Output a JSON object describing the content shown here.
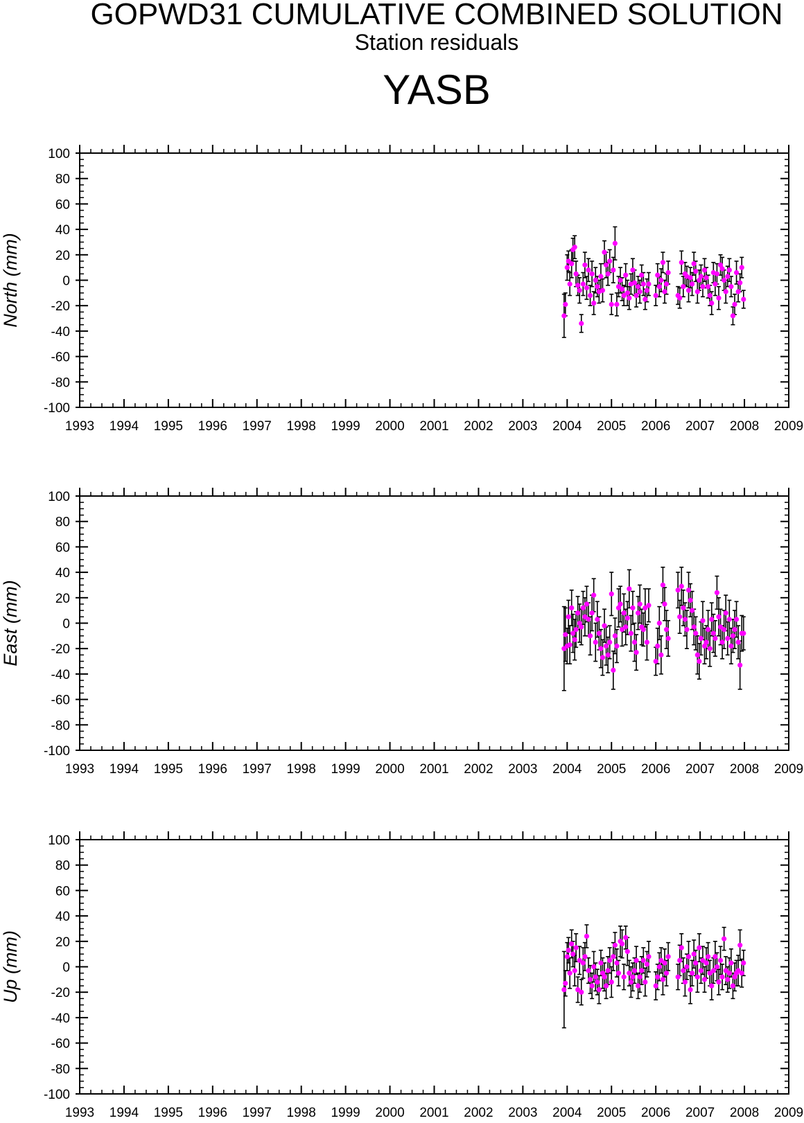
{
  "header": {
    "title": "GOPWD31 CUMULATIVE COMBINED SOLUTION",
    "subtitle": "Station residuals",
    "station": "YASB"
  },
  "colors": {
    "point": "#ff00ff",
    "errorbar": "#000000",
    "axis": "#000000"
  },
  "chart_data": [
    {
      "type": "scatter",
      "ylabel": "North (mm)",
      "xlim": [
        1993,
        2009
      ],
      "ylim": [
        -100,
        100
      ],
      "xticks": [
        "1993",
        "1994",
        "1995",
        "1996",
        "1997",
        "1998",
        "1999",
        "2000",
        "2001",
        "2002",
        "2003",
        "2004",
        "2005",
        "2006",
        "2007",
        "2008",
        "2009"
      ],
      "yticks": [
        "100",
        "80",
        "60",
        "40",
        "20",
        "0",
        "-20",
        "-40",
        "-60",
        "-80",
        "-100"
      ],
      "grid": false,
      "series": [
        {
          "x": [
            2003.93,
            2003.96,
            2004.0,
            2004.03,
            2004.06,
            2004.1,
            2004.13,
            2004.17,
            2004.2,
            2004.24,
            2004.28,
            2004.32,
            2004.36,
            2004.4,
            2004.44,
            2004.48,
            2004.52,
            2004.56,
            2004.6,
            2004.64,
            2004.68,
            2004.72,
            2004.76,
            2004.8,
            2004.84,
            2004.88,
            2004.92,
            2004.96,
            2005.0,
            2005.04,
            2005.08,
            2005.12,
            2005.16,
            2005.2,
            2005.24,
            2005.28,
            2005.32,
            2005.36,
            2005.4,
            2005.44,
            2005.48,
            2005.52,
            2005.56,
            2005.6,
            2005.64,
            2005.68,
            2005.72,
            2005.76,
            2005.8,
            2005.84,
            2006.0,
            2006.04,
            2006.08,
            2006.12,
            2006.16,
            2006.2,
            2006.24,
            2006.28,
            2006.5,
            2006.54,
            2006.58,
            2006.62,
            2006.66,
            2006.7,
            2006.74,
            2006.78,
            2006.82,
            2006.86,
            2006.9,
            2006.94,
            2006.98,
            2007.02,
            2007.06,
            2007.1,
            2007.14,
            2007.18,
            2007.22,
            2007.26,
            2007.3,
            2007.34,
            2007.38,
            2007.42,
            2007.46,
            2007.5,
            2007.54,
            2007.58,
            2007.62,
            2007.66,
            2007.7,
            2007.74,
            2007.78,
            2007.82,
            2007.86,
            2007.9,
            2007.94,
            2007.98
          ],
          "y": [
            -28,
            -19,
            10,
            15,
            -3,
            13,
            24,
            26,
            5,
            -4,
            -8,
            -34,
            -3,
            12,
            -6,
            8,
            -12,
            5,
            -18,
            0,
            -5,
            -9,
            3,
            -8,
            22,
            12,
            5,
            15,
            -19,
            8,
            29,
            -19,
            -5,
            0,
            -7,
            -12,
            4,
            -10,
            -14,
            -3,
            8,
            -2,
            -12,
            -5,
            -9,
            4,
            -3,
            -15,
            -8,
            -3,
            -12,
            4,
            -5,
            0,
            14,
            -9,
            -3,
            6,
            -12,
            -14,
            14,
            -5,
            5,
            3,
            -8,
            2,
            -3,
            13,
            7,
            -9,
            0,
            3,
            -5,
            8,
            2,
            -5,
            -12,
            -18,
            6,
            -3,
            5,
            -14,
            12,
            9,
            0,
            -9,
            3,
            8,
            -5,
            -28,
            -19,
            6,
            -9,
            -2,
            10,
            -15
          ],
          "err": [
            17,
            9,
            10,
            8,
            9,
            11,
            9,
            9,
            10,
            8,
            10,
            7,
            9,
            10,
            9,
            9,
            8,
            10,
            9,
            10,
            8,
            9,
            10,
            9,
            9,
            10,
            9,
            9,
            8,
            10,
            13,
            9,
            8,
            10,
            9,
            8,
            9,
            10,
            9,
            8,
            9,
            10,
            9,
            8,
            9,
            8,
            9,
            8,
            9,
            9,
            8,
            9,
            8,
            9,
            8,
            9,
            8,
            9,
            7,
            8,
            9,
            8,
            9,
            8,
            9,
            8,
            9,
            9,
            8,
            9,
            8,
            9,
            8,
            9,
            8,
            9,
            8,
            9,
            8,
            9,
            8,
            9,
            8,
            9,
            8,
            9,
            8,
            9,
            8,
            7,
            8,
            9,
            8,
            7,
            8,
            7
          ]
        }
      ]
    },
    {
      "type": "scatter",
      "ylabel": "East (mm)",
      "xlim": [
        1993,
        2009
      ],
      "ylim": [
        -100,
        100
      ],
      "xticks": [
        "1993",
        "1994",
        "1995",
        "1996",
        "1997",
        "1998",
        "1999",
        "2000",
        "2001",
        "2002",
        "2003",
        "2004",
        "2005",
        "2006",
        "2007",
        "2008",
        "2009"
      ],
      "yticks": [
        "100",
        "80",
        "60",
        "40",
        "20",
        "0",
        "-20",
        "-40",
        "-60",
        "-80",
        "-100"
      ],
      "grid": false,
      "series": [
        {
          "x": [
            2003.93,
            2003.96,
            2004.0,
            2004.03,
            2004.06,
            2004.1,
            2004.13,
            2004.17,
            2004.2,
            2004.24,
            2004.28,
            2004.32,
            2004.36,
            2004.4,
            2004.44,
            2004.48,
            2004.52,
            2004.56,
            2004.6,
            2004.64,
            2004.68,
            2004.72,
            2004.76,
            2004.8,
            2004.84,
            2004.88,
            2004.92,
            2004.96,
            2005.0,
            2005.04,
            2005.08,
            2005.12,
            2005.16,
            2005.2,
            2005.24,
            2005.28,
            2005.32,
            2005.36,
            2005.4,
            2005.44,
            2005.48,
            2005.52,
            2005.56,
            2005.6,
            2005.64,
            2005.68,
            2005.72,
            2005.76,
            2005.8,
            2005.84,
            2006.0,
            2006.04,
            2006.08,
            2006.12,
            2006.16,
            2006.2,
            2006.24,
            2006.28,
            2006.5,
            2006.54,
            2006.58,
            2006.62,
            2006.66,
            2006.7,
            2006.74,
            2006.78,
            2006.82,
            2006.86,
            2006.9,
            2006.94,
            2006.98,
            2007.02,
            2007.06,
            2007.1,
            2007.14,
            2007.18,
            2007.22,
            2007.26,
            2007.3,
            2007.34,
            2007.38,
            2007.42,
            2007.46,
            2007.5,
            2007.54,
            2007.58,
            2007.62,
            2007.66,
            2007.7,
            2007.74,
            2007.78,
            2007.82,
            2007.86,
            2007.9,
            2007.94,
            2007.98
          ],
          "y": [
            -20,
            -9,
            -18,
            5,
            -17,
            12,
            -8,
            -13,
            -5,
            8,
            0,
            -3,
            12,
            5,
            15,
            3,
            -10,
            8,
            22,
            -15,
            3,
            -8,
            -20,
            -27,
            -2,
            -18,
            -25,
            -15,
            23,
            -37,
            -10,
            -18,
            12,
            15,
            -5,
            8,
            -3,
            4,
            27,
            -8,
            12,
            -15,
            -23,
            8,
            15,
            -3,
            -5,
            12,
            -15,
            14,
            -30,
            -18,
            0,
            -25,
            30,
            15,
            -5,
            -12,
            26,
            5,
            29,
            12,
            3,
            -5,
            26,
            18,
            10,
            -3,
            -8,
            -25,
            -30,
            -12,
            2,
            -18,
            -15,
            -5,
            -20,
            3,
            -8,
            -12,
            24,
            5,
            -3,
            -15,
            -5,
            8,
            -12,
            3,
            -18,
            -10,
            -5,
            3,
            -15,
            -33,
            -8,
            -8
          ],
          "err": [
            33,
            21,
            14,
            13,
            15,
            14,
            15,
            16,
            14,
            13,
            15,
            14,
            13,
            15,
            14,
            13,
            15,
            14,
            13,
            15,
            14,
            13,
            15,
            14,
            13,
            15,
            14,
            13,
            17,
            15,
            14,
            13,
            15,
            14,
            13,
            15,
            14,
            13,
            15,
            14,
            13,
            15,
            14,
            13,
            15,
            14,
            13,
            15,
            14,
            13,
            11,
            14,
            13,
            15,
            14,
            13,
            15,
            14,
            14,
            13,
            15,
            14,
            13,
            15,
            14,
            13,
            15,
            14,
            13,
            15,
            14,
            13,
            15,
            14,
            13,
            15,
            14,
            13,
            15,
            14,
            13,
            15,
            14,
            13,
            15,
            14,
            13,
            15,
            14,
            13,
            15,
            14,
            13,
            19,
            14,
            13
          ]
        }
      ]
    },
    {
      "type": "scatter",
      "ylabel": "Up (mm)",
      "xlim": [
        1993,
        2009
      ],
      "ylim": [
        -100,
        100
      ],
      "xticks": [
        "1993",
        "1994",
        "1995",
        "1996",
        "1997",
        "1998",
        "1999",
        "2000",
        "2001",
        "2002",
        "2003",
        "2004",
        "2005",
        "2006",
        "2007",
        "2008",
        "2009"
      ],
      "yticks": [
        "100",
        "80",
        "60",
        "40",
        "20",
        "0",
        "-20",
        "-40",
        "-60",
        "-80",
        "-100"
      ],
      "grid": false,
      "series": [
        {
          "x": [
            2003.93,
            2003.96,
            2004.0,
            2004.03,
            2004.06,
            2004.1,
            2004.13,
            2004.17,
            2004.2,
            2004.24,
            2004.28,
            2004.32,
            2004.36,
            2004.4,
            2004.44,
            2004.48,
            2004.52,
            2004.56,
            2004.6,
            2004.64,
            2004.68,
            2004.72,
            2004.76,
            2004.8,
            2004.84,
            2004.88,
            2004.92,
            2004.96,
            2005.0,
            2005.04,
            2005.08,
            2005.12,
            2005.16,
            2005.2,
            2005.24,
            2005.28,
            2005.32,
            2005.36,
            2005.4,
            2005.44,
            2005.48,
            2005.52,
            2005.56,
            2005.6,
            2005.64,
            2005.68,
            2005.72,
            2005.76,
            2005.8,
            2005.84,
            2006.0,
            2006.04,
            2006.08,
            2006.12,
            2006.16,
            2006.2,
            2006.24,
            2006.28,
            2006.5,
            2006.54,
            2006.58,
            2006.62,
            2006.66,
            2006.7,
            2006.74,
            2006.78,
            2006.82,
            2006.86,
            2006.9,
            2006.94,
            2006.98,
            2007.02,
            2007.06,
            2007.1,
            2007.14,
            2007.18,
            2007.22,
            2007.26,
            2007.3,
            2007.34,
            2007.38,
            2007.42,
            2007.46,
            2007.5,
            2007.54,
            2007.58,
            2007.62,
            2007.66,
            2007.7,
            2007.74,
            2007.78,
            2007.82,
            2007.86,
            2007.9,
            2007.94,
            2007.98
          ],
          "y": [
            -18,
            -13,
            8,
            13,
            -5,
            18,
            10,
            -3,
            15,
            -18,
            5,
            -20,
            3,
            8,
            24,
            -3,
            -10,
            -15,
            0,
            -8,
            -12,
            -18,
            3,
            -5,
            -8,
            -15,
            -3,
            5,
            -12,
            8,
            17,
            3,
            -5,
            20,
            18,
            -8,
            23,
            12,
            -5,
            -12,
            -8,
            -3,
            5,
            -15,
            -8,
            -3,
            5,
            -12,
            2,
            8,
            -15,
            -8,
            0,
            5,
            -10,
            3,
            -5,
            8,
            -8,
            5,
            15,
            -3,
            -12,
            0,
            8,
            -18,
            -5,
            10,
            3,
            -8,
            15,
            -3,
            5,
            -10,
            3,
            8,
            -5,
            -15,
            -3,
            8,
            0,
            -12,
            5,
            -8,
            22,
            -3,
            -10,
            -5,
            3,
            -15,
            -8,
            -5,
            -3,
            17,
            -5,
            3
          ],
          "err": [
            30,
            10,
            11,
            10,
            12,
            11,
            10,
            12,
            11,
            10,
            11,
            10,
            12,
            11,
            9,
            10,
            11,
            10,
            12,
            11,
            10,
            11,
            10,
            12,
            11,
            10,
            11,
            10,
            12,
            11,
            10,
            11,
            10,
            12,
            11,
            10,
            9,
            11,
            10,
            12,
            11,
            10,
            11,
            10,
            12,
            11,
            10,
            11,
            10,
            12,
            11,
            10,
            11,
            10,
            12,
            11,
            10,
            11,
            10,
            12,
            11,
            10,
            11,
            10,
            12,
            11,
            10,
            11,
            10,
            12,
            11,
            10,
            11,
            10,
            12,
            11,
            10,
            11,
            10,
            12,
            11,
            10,
            11,
            10,
            9,
            11,
            10,
            12,
            11,
            10,
            11,
            10,
            12,
            12,
            11,
            10
          ]
        }
      ]
    }
  ]
}
